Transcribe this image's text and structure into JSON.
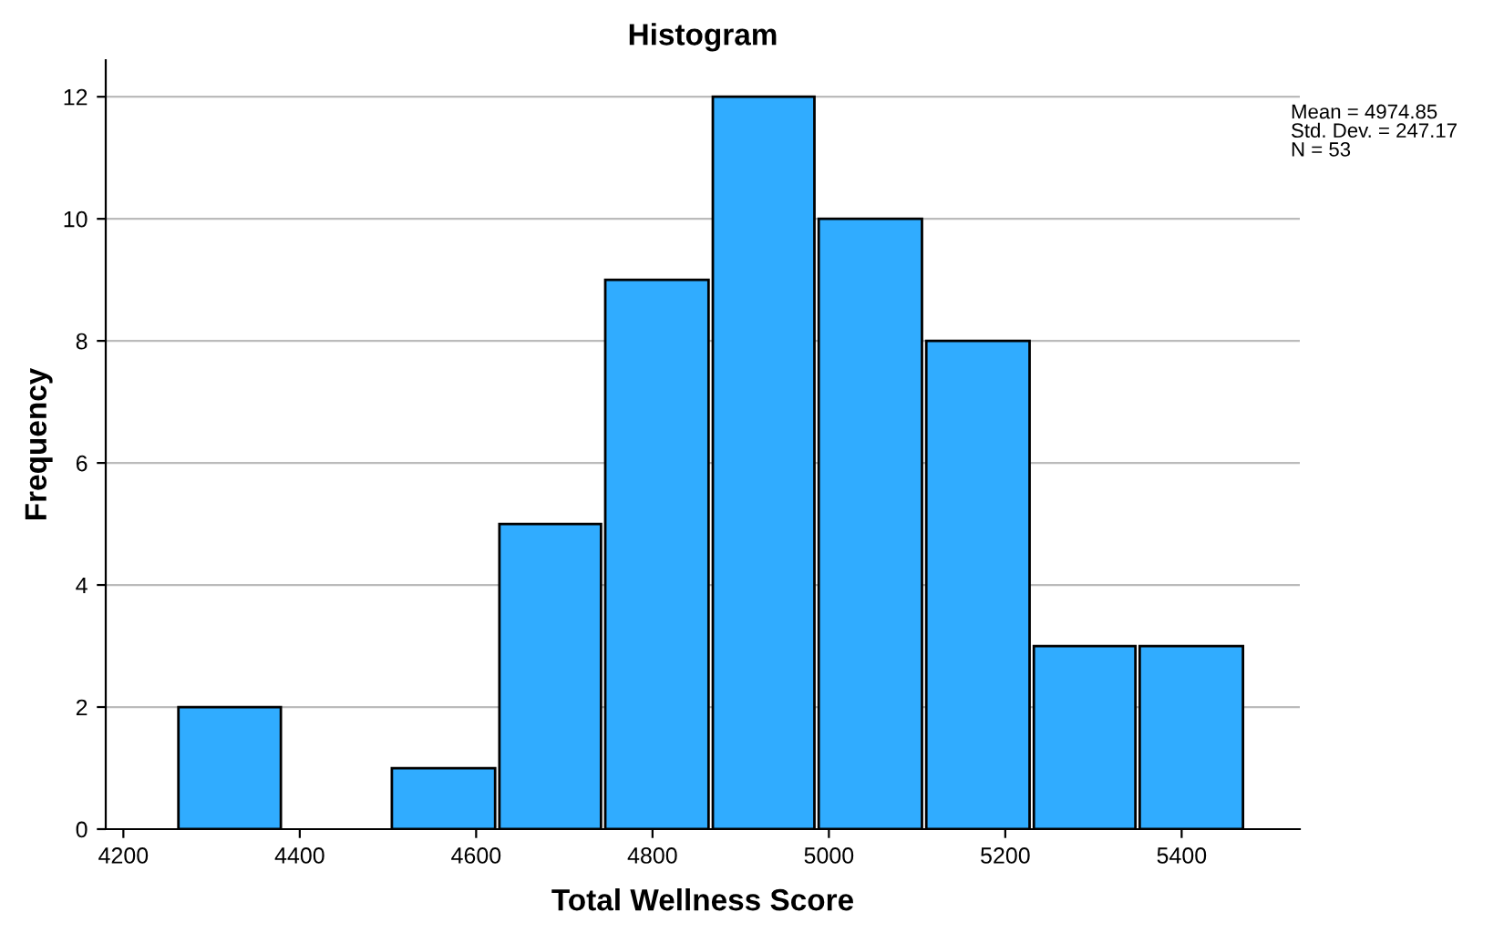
{
  "chart_data": {
    "type": "histogram",
    "title": "Histogram",
    "xlabel": "Total Wellness Score",
    "ylabel": "Frequency",
    "bins": [
      4260,
      4381,
      4502,
      4624,
      4744,
      4866,
      4986,
      5108,
      5230,
      5350,
      5472
    ],
    "values": [
      2,
      0,
      1,
      5,
      9,
      12,
      10,
      8,
      3,
      3
    ],
    "color": "#30acff",
    "xlim": [
      4180,
      5534
    ],
    "xticks": [
      4200,
      4400,
      4600,
      4800,
      5000,
      5200,
      5400
    ],
    "ylim": [
      0,
      12.6
    ],
    "yticks": [
      0,
      2,
      4,
      6,
      8,
      10,
      12
    ],
    "grid": "y",
    "legend": false,
    "annotations": [
      "Mean = 4974.85",
      "Std. Dev. = 247.17",
      "N = 53"
    ]
  }
}
